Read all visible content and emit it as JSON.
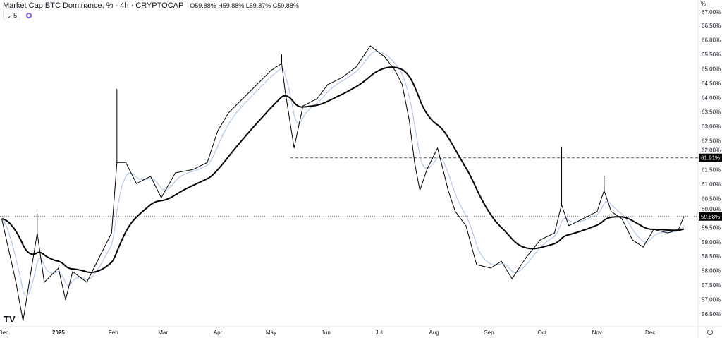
{
  "header": {
    "title": "Market Cap BTC Dominance, % · 4h · CRYPTOCAP",
    "ohlc": "O59.88% H59.88% L59.87% C59.88%",
    "indicator_count": "5",
    "logo": "TV"
  },
  "chart_data": {
    "type": "line",
    "title": "Market Cap BTC Dominance, %",
    "ylabel": "%",
    "ylim": [
      56.1,
      67.0
    ],
    "yticks": [
      "67.00%",
      "66.50%",
      "66.00%",
      "65.50%",
      "65.00%",
      "64.50%",
      "64.00%",
      "63.50%",
      "63.00%",
      "62.50%",
      "62.00%",
      "61.50%",
      "61.00%",
      "60.50%",
      "60.00%",
      "59.50%",
      "59.00%",
      "58.50%",
      "58.00%",
      "57.50%",
      "57.00%",
      "56.50%"
    ],
    "xticks": [
      {
        "date": "2024-12-01",
        "label": "Dec"
      },
      {
        "date": "2025-01-01",
        "label": "2025"
      },
      {
        "date": "2025-02-01",
        "label": "Feb"
      },
      {
        "date": "2025-03-01",
        "label": "Mar"
      },
      {
        "date": "2025-04-01",
        "label": "Apr"
      },
      {
        "date": "2025-05-01",
        "label": "May"
      },
      {
        "date": "2025-06-01",
        "label": "Jun"
      },
      {
        "date": "2025-07-01",
        "label": "Jul"
      },
      {
        "date": "2025-08-01",
        "label": "Aug"
      },
      {
        "date": "2025-09-01",
        "label": "Sep"
      },
      {
        "date": "2025-10-01",
        "label": "Oct"
      },
      {
        "date": "2025-11-01",
        "label": "Nov"
      },
      {
        "date": "2025-12-01",
        "label": "Dec"
      }
    ],
    "xlim": [
      "2024-11-29",
      "2025-12-28"
    ],
    "series": [
      {
        "color": "#000000",
        "dates": [
          "2024-11-30",
          "2024-12-08",
          "2024-12-12",
          "2024-12-20",
          "2024-12-24",
          "2025-01-01",
          "2025-01-05",
          "2025-01-09",
          "2025-01-17",
          "2025-01-25",
          "2025-01-31",
          "2025-02-03",
          "2025-02-08",
          "2025-02-14",
          "2025-02-22",
          "2025-02-28",
          "2025-03-08",
          "2025-03-18",
          "2025-03-26",
          "2025-04-01",
          "2025-04-07",
          "2025-04-15",
          "2025-04-23",
          "2025-05-01",
          "2025-05-07",
          "2025-05-09",
          "2025-05-14",
          "2025-05-19",
          "2025-05-27",
          "2025-06-02",
          "2025-06-10",
          "2025-06-18",
          "2025-06-26",
          "2025-07-04",
          "2025-07-10",
          "2025-07-14",
          "2025-07-18",
          "2025-07-21",
          "2025-07-24",
          "2025-07-28",
          "2025-08-03",
          "2025-08-09",
          "2025-08-13",
          "2025-08-19",
          "2025-08-25",
          "2025-09-02",
          "2025-09-08",
          "2025-09-14",
          "2025-09-22",
          "2025-09-30",
          "2025-10-08",
          "2025-10-12",
          "2025-10-16",
          "2025-10-24",
          "2025-11-01",
          "2025-11-05",
          "2025-11-09",
          "2025-11-15",
          "2025-11-21",
          "2025-11-27",
          "2025-12-03",
          "2025-12-11",
          "2025-12-17",
          "2025-12-20"
        ],
        "values": [
          59.8,
          57.6,
          56.26,
          59.31,
          57.6,
          58.09,
          56.99,
          57.97,
          57.6,
          58.58,
          59.31,
          61.75,
          61.75,
          61.02,
          61.27,
          60.53,
          61.39,
          61.51,
          61.75,
          62.86,
          63.47,
          63.96,
          64.45,
          64.94,
          65.18,
          64.2,
          62.25,
          63.71,
          63.96,
          64.45,
          64.69,
          65.06,
          65.79,
          65.42,
          64.94,
          64.45,
          63.22,
          61.75,
          60.78,
          61.51,
          62.25,
          60.78,
          60.05,
          59.56,
          58.21,
          58.09,
          58.33,
          57.72,
          58.46,
          59.07,
          59.31,
          60.29,
          59.56,
          59.8,
          60.05,
          60.78,
          60.05,
          59.8,
          59.07,
          58.82,
          59.43,
          59.31,
          59.43,
          59.88
        ]
      }
    ],
    "wicks": [
      {
        "date": "2024-12-20",
        "high": 59.97
      },
      {
        "date": "2025-02-03",
        "high": 64.3
      },
      {
        "date": "2025-05-07",
        "high": 65.5
      },
      {
        "date": "2025-10-12",
        "high": 62.3
      },
      {
        "date": "2025-11-05",
        "high": 61.3
      }
    ],
    "moving_averages": [
      {
        "color": "#b4c8ec"
      },
      {
        "color": "#000000"
      }
    ],
    "horizontal_lines": [
      {
        "value": 61.91,
        "label": "61.91%",
        "style": "dashed",
        "from": "2025-05-12",
        "color": "#000000"
      },
      {
        "value": 59.88,
        "label": "59.88%",
        "style": "dotted",
        "color": "#000000"
      }
    ],
    "grid": false
  }
}
